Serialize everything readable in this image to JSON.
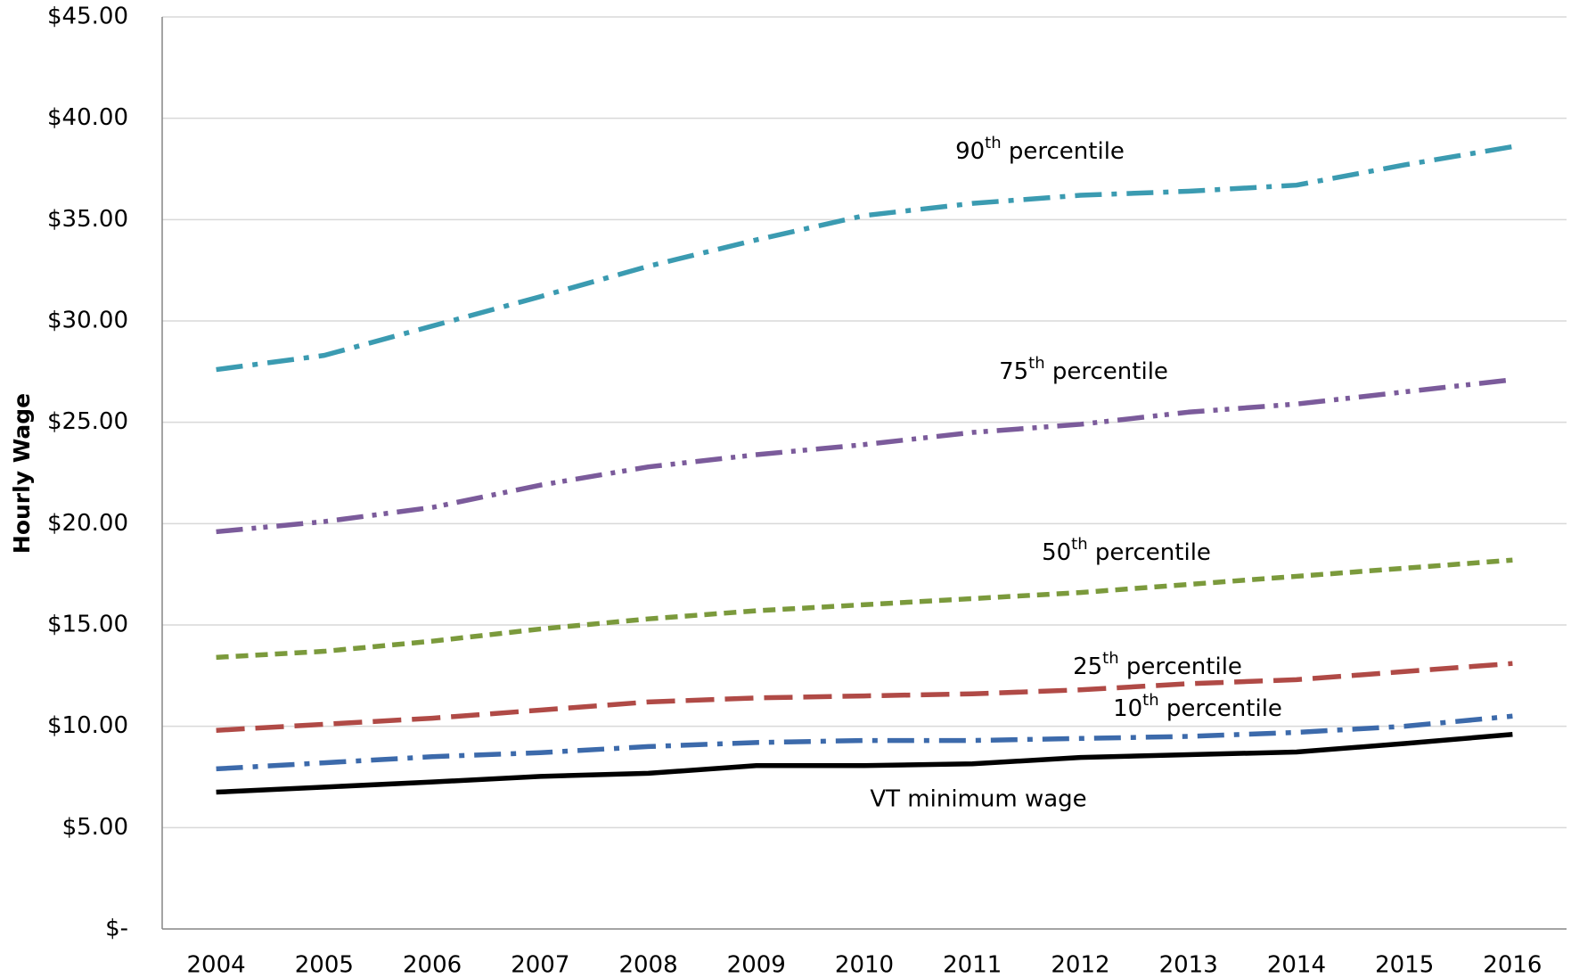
{
  "chart_data": {
    "type": "line",
    "y_label": "Hourly Wage",
    "categories": [
      "2004",
      "2005",
      "2006",
      "2007",
      "2008",
      "2009",
      "2010",
      "2011",
      "2012",
      "2013",
      "2014",
      "2015",
      "2016"
    ],
    "series": [
      {
        "name": "90th percentile",
        "color": "#3b9bb1",
        "values": [
          27.6,
          28.3,
          29.75,
          31.2,
          32.7,
          34.0,
          35.2,
          35.8,
          36.2,
          36.4,
          36.7,
          37.7,
          38.6
        ]
      },
      {
        "name": "75th percentile",
        "color": "#7b5b9b",
        "values": [
          19.6,
          20.1,
          20.8,
          21.9,
          22.8,
          23.4,
          23.9,
          24.5,
          24.9,
          25.5,
          25.9,
          26.5,
          27.1
        ]
      },
      {
        "name": "50th percentile",
        "color": "#7b9a3c",
        "values": [
          13.4,
          13.7,
          14.2,
          14.8,
          15.3,
          15.7,
          16.0,
          16.3,
          16.6,
          17.0,
          17.4,
          17.8,
          18.2
        ]
      },
      {
        "name": "25th percentile",
        "color": "#b04a46",
        "values": [
          9.8,
          10.1,
          10.4,
          10.8,
          11.2,
          11.4,
          11.5,
          11.6,
          11.8,
          12.1,
          12.3,
          12.7,
          13.1
        ]
      },
      {
        "name": "10th percentile",
        "color": "#3c6aab",
        "values": [
          7.9,
          8.2,
          8.5,
          8.7,
          9.0,
          9.2,
          9.3,
          9.3,
          9.4,
          9.5,
          9.7,
          10.0,
          10.5
        ]
      },
      {
        "name": "VT minimum wage",
        "color": "#000000",
        "values": [
          6.75,
          7.0,
          7.25,
          7.53,
          7.68,
          8.06,
          8.06,
          8.15,
          8.46,
          8.6,
          8.73,
          9.15,
          9.6
        ]
      }
    ],
    "ylim": [
      0,
      45
    ],
    "yticks": [
      {
        "value": 0,
        "label": "$-"
      },
      {
        "value": 5,
        "label": "$5.00"
      },
      {
        "value": 10,
        "label": "$10.00"
      },
      {
        "value": 15,
        "label": "$15.00"
      },
      {
        "value": 20,
        "label": "$20.00"
      },
      {
        "value": 25,
        "label": "$25.00"
      },
      {
        "value": 30,
        "label": "$30.00"
      },
      {
        "value": 35,
        "label": "$35.00"
      },
      {
        "value": 40,
        "label": "$40.00"
      },
      {
        "value": 45,
        "label": "$45.00"
      }
    ],
    "grid": true
  }
}
